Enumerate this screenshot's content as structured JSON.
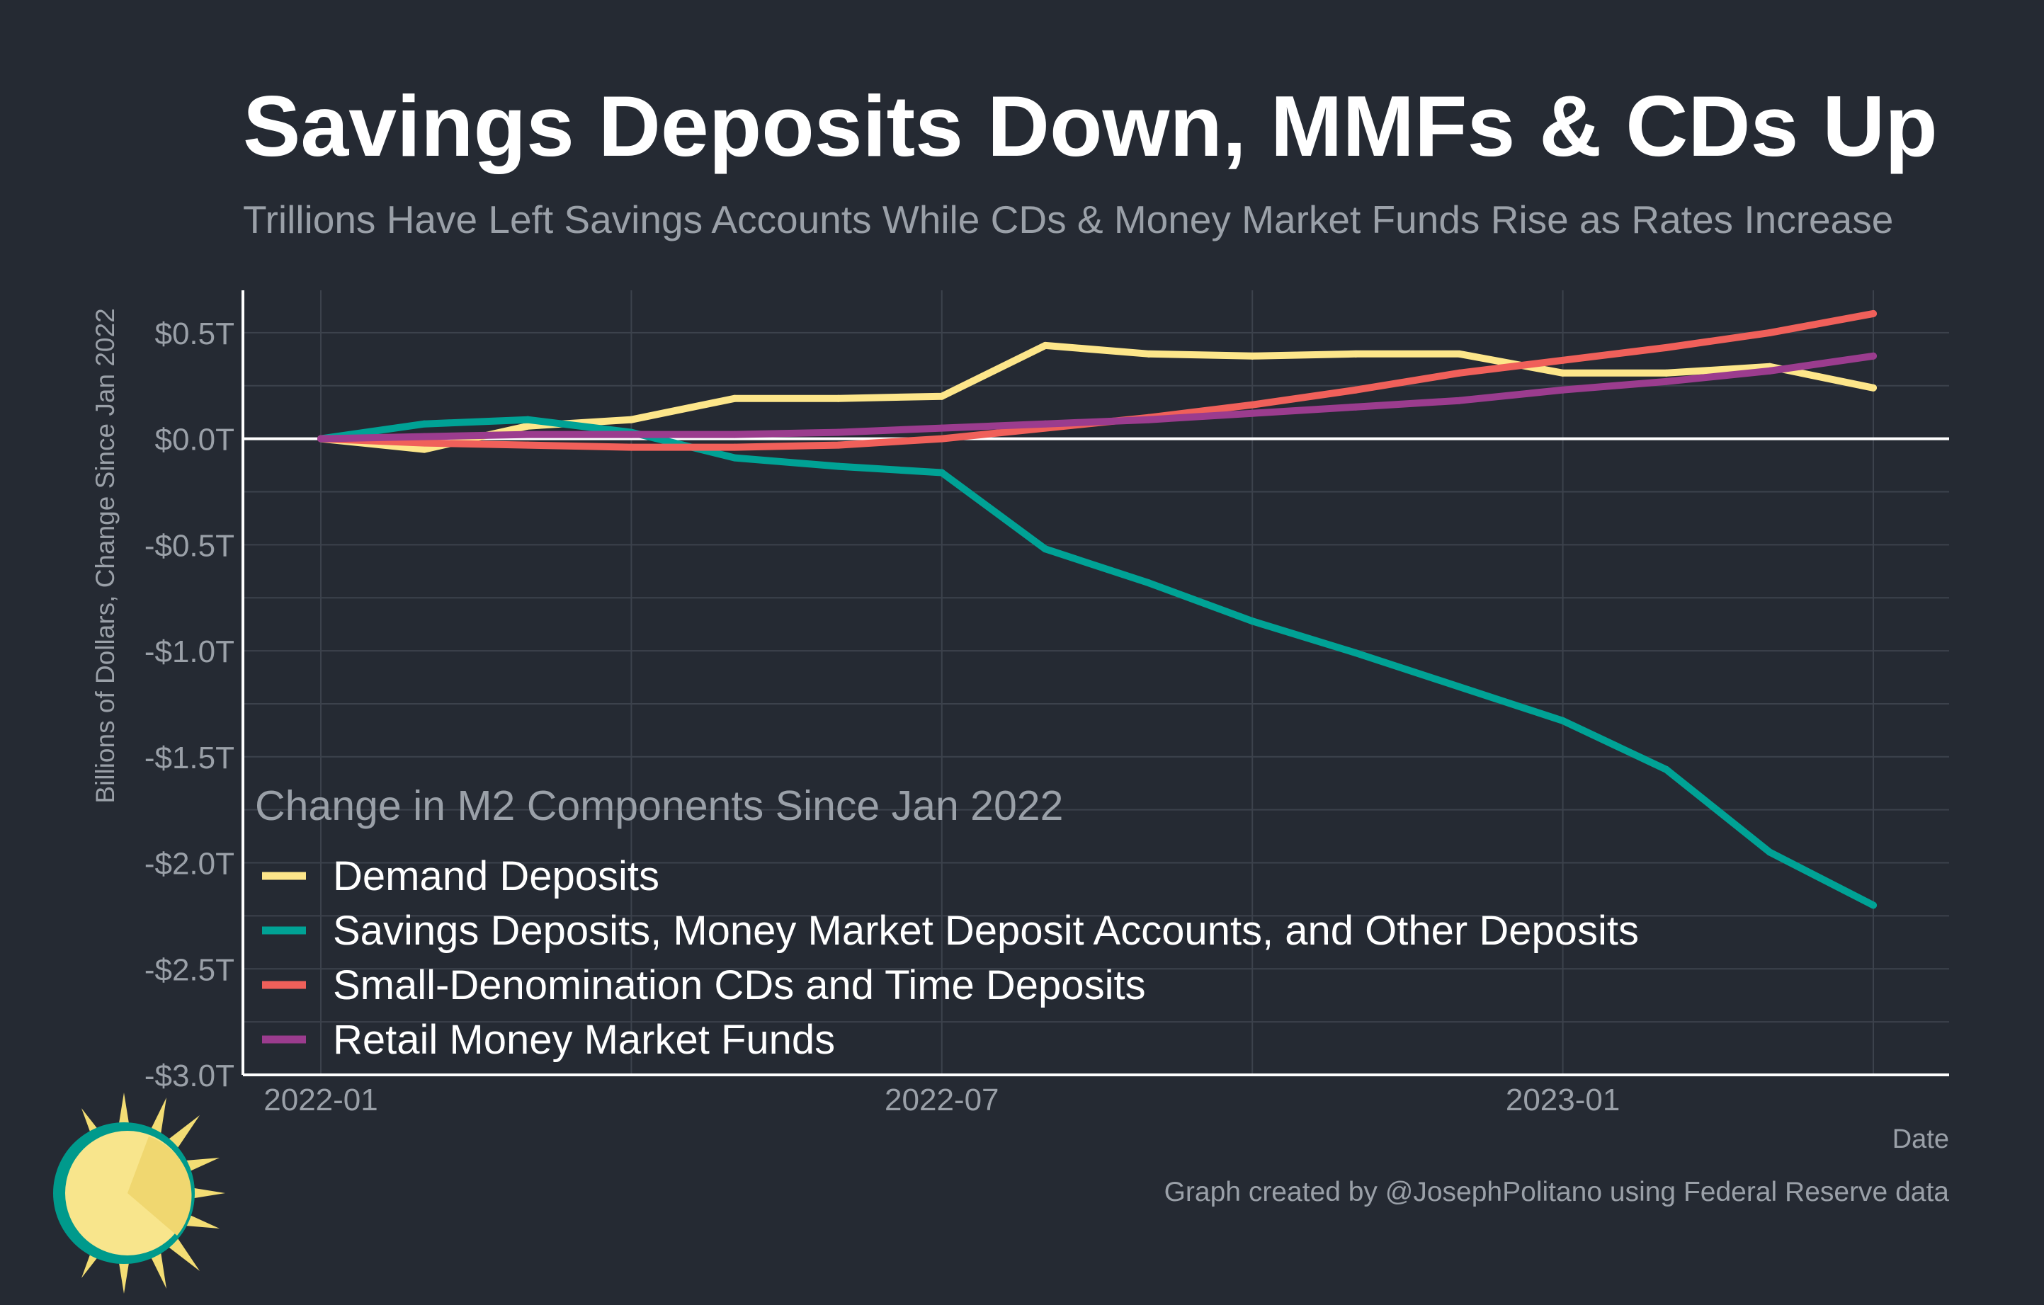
{
  "title": "Savings Deposits Down, MMFs & CDs Up",
  "subtitle": "Trillions Have Left Savings Accounts While CDs & Money Market Funds Rise as Rates Increase",
  "caption": "Graph created by @JosephPolitano using Federal Reserve data",
  "colors": {
    "background": "#252a33",
    "grid": "#3c424c",
    "axis": "#ffffff",
    "muted_text": "#9aa0a8"
  },
  "chart_data": {
    "type": "line",
    "title": "Savings Deposits Down, MMFs & CDs Up",
    "subtitle": "Trillions Have Left Savings Accounts While CDs & Money Market Funds Rise as Rates Increase",
    "xlabel": "Date",
    "ylabel": "Billions of Dollars, Change Since Jan 2022",
    "x": [
      "2022-01",
      "2022-02",
      "2022-03",
      "2022-04",
      "2022-05",
      "2022-06",
      "2022-07",
      "2022-08",
      "2022-09",
      "2022-10",
      "2022-11",
      "2022-12",
      "2023-01",
      "2023-02",
      "2023-03",
      "2023-04"
    ],
    "x_ticks": [
      "2022-01",
      "2022-07",
      "2023-01"
    ],
    "ylim": [
      -3.0,
      0.7
    ],
    "y_ticks": [
      0.5,
      0.0,
      -0.5,
      -1.0,
      -1.5,
      -2.0,
      -2.5,
      -3.0
    ],
    "y_tick_labels": [
      "$0.5T",
      "$0.0T",
      "-$0.5T",
      "-$1.0T",
      "-$1.5T",
      "-$2.0T",
      "-$2.5T",
      "-$3.0T"
    ],
    "grid": true,
    "legend_title": "Change in M2 Components Since Jan 2022",
    "legend_position": "bottom-left inside",
    "series": [
      {
        "name": "Demand Deposits",
        "color": "#fde68a",
        "values": [
          0.0,
          -0.05,
          0.06,
          0.09,
          0.19,
          0.19,
          0.2,
          0.44,
          0.4,
          0.39,
          0.4,
          0.4,
          0.31,
          0.31,
          0.34,
          0.24
        ]
      },
      {
        "name": "Savings Deposits, Money Market Deposit Accounts, and Other Deposits",
        "color": "#00a295",
        "values": [
          0.0,
          0.07,
          0.09,
          0.03,
          -0.09,
          -0.13,
          -0.16,
          -0.52,
          -0.68,
          -0.86,
          -1.01,
          -1.17,
          -1.33,
          -1.56,
          -1.95,
          -2.2
        ]
      },
      {
        "name": "Small-Denomination CDs and Time Deposits",
        "color": "#f0605a",
        "values": [
          0.0,
          -0.02,
          -0.03,
          -0.04,
          -0.04,
          -0.03,
          0.0,
          0.05,
          0.1,
          0.16,
          0.23,
          0.31,
          0.37,
          0.43,
          0.5,
          0.59
        ]
      },
      {
        "name": "Retail Money Market Funds",
        "color": "#9b3c8e",
        "values": [
          0.0,
          0.01,
          0.02,
          0.02,
          0.02,
          0.03,
          0.05,
          0.07,
          0.09,
          0.12,
          0.15,
          0.18,
          0.23,
          0.27,
          0.32,
          0.39
        ]
      }
    ]
  }
}
